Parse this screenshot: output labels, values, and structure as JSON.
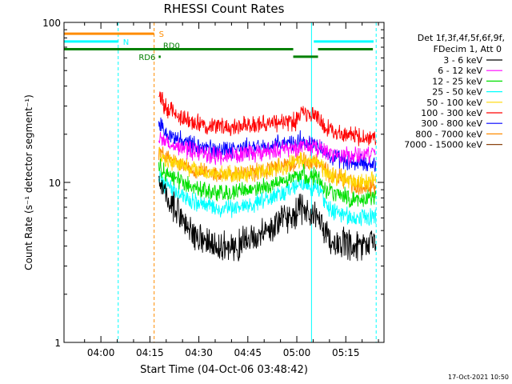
{
  "chart_data": {
    "type": "line",
    "title": "RHESSI Count Rates",
    "xlabel": "Start Time (04-Oct-06 03:48:42)",
    "ylabel": "Count Rate (s⁻¹ detector segment⁻¹)",
    "ylog": true,
    "xrange_minutes_after_start": [
      0,
      98
    ],
    "ylim": [
      1,
      100
    ],
    "x_ticks": [
      {
        "label": "04:00",
        "minute": 11.3
      },
      {
        "label": "04:15",
        "minute": 26.3
      },
      {
        "label": "04:30",
        "minute": 41.3
      },
      {
        "label": "04:45",
        "minute": 56.3
      },
      {
        "label": "05:00",
        "minute": 71.3
      },
      {
        "label": "05:15",
        "minute": 86.3
      }
    ],
    "y_ticks": [
      {
        "label": "1",
        "value": 1
      },
      {
        "label": "10",
        "value": 10
      },
      {
        "label": "100",
        "value": 100
      }
    ],
    "legend_header": [
      "Det 1f,3f,4f,5f,6f,9f,",
      "FDecim 1, Att 0"
    ],
    "series": [
      {
        "name": "3 - 6 keV",
        "color": "#000000",
        "x": [
          29.0,
          30,
          32,
          36,
          40,
          44,
          48,
          52,
          56,
          60,
          64,
          68,
          70,
          71,
          72,
          75,
          78,
          79,
          80,
          82,
          86,
          89,
          93,
          95.5
        ],
        "y": [
          9.5,
          8.6,
          7.5,
          6.0,
          4.6,
          4.1,
          3.9,
          4.0,
          4.3,
          4.6,
          5.3,
          6.0,
          6.2,
          6.3,
          6.8,
          6.5,
          6.1,
          5.5,
          4.8,
          4.3,
          4.1,
          3.8,
          4.1,
          4.4
        ]
      },
      {
        "name": "6 - 12 keV",
        "color": "#ff00ff",
        "x": [
          29.0,
          30,
          32,
          36,
          40,
          44,
          48,
          52,
          56,
          60,
          64,
          68,
          70,
          71,
          72,
          75,
          78,
          79,
          80,
          82,
          86,
          89,
          93,
          95.5
        ],
        "y": [
          19.5,
          18.5,
          17.5,
          16.3,
          15.6,
          15.1,
          14.6,
          14.8,
          15.0,
          15.2,
          15.6,
          16.2,
          16.4,
          16.5,
          17.0,
          16.8,
          16.6,
          16.0,
          15.4,
          15.1,
          14.9,
          14.6,
          14.8,
          15.0
        ]
      },
      {
        "name": "12 - 25 keV",
        "color": "#00e000",
        "x": [
          29.0,
          30,
          32,
          36,
          40,
          44,
          48,
          52,
          56,
          60,
          64,
          68,
          70,
          71,
          72,
          75,
          78,
          79,
          80,
          82,
          86,
          89,
          93,
          95.5
        ],
        "y": [
          12.8,
          12.0,
          11.2,
          10.1,
          9.3,
          8.8,
          8.5,
          8.6,
          8.9,
          9.2,
          9.7,
          10.4,
          10.7,
          10.8,
          11.3,
          11.0,
          10.7,
          10.0,
          9.3,
          8.7,
          8.2,
          7.8,
          7.9,
          8.1
        ]
      },
      {
        "name": "25 - 50 keV",
        "color": "#00ffff",
        "x": [
          29.0,
          30,
          32,
          36,
          40,
          44,
          48,
          52,
          56,
          60,
          64,
          68,
          70,
          71,
          72,
          75,
          78,
          79,
          80,
          82,
          86,
          89,
          93,
          95.5
        ],
        "y": [
          11.0,
          10.2,
          9.3,
          8.3,
          7.6,
          7.1,
          6.8,
          6.9,
          7.2,
          7.6,
          8.1,
          8.9,
          9.2,
          9.3,
          9.8,
          9.5,
          9.2,
          8.3,
          7.4,
          6.7,
          6.2,
          5.9,
          6.0,
          6.3
        ]
      },
      {
        "name": "50 - 100 keV",
        "color": "#ffd700",
        "x": [
          29.0,
          30,
          32,
          36,
          40,
          44,
          48,
          52,
          56,
          60,
          64,
          68,
          70,
          71,
          72,
          75,
          78,
          79,
          80,
          82,
          86,
          89,
          93,
          95.5
        ],
        "y": [
          15.0,
          14.4,
          13.7,
          12.8,
          12.0,
          11.5,
          11.1,
          11.2,
          11.4,
          11.7,
          12.1,
          12.8,
          13.1,
          13.2,
          13.8,
          13.5,
          13.2,
          12.5,
          11.6,
          11.0,
          10.5,
          10.1,
          10.2,
          10.4
        ]
      },
      {
        "name": "100 - 300 keV",
        "color": "#ff0000",
        "x": [
          29.0,
          30,
          32,
          36,
          40,
          44,
          48,
          52,
          56,
          60,
          64,
          68,
          70,
          71,
          72,
          75,
          78,
          79,
          80,
          82,
          86,
          89,
          93,
          95.5
        ],
        "y": [
          37.0,
          32.0,
          28.5,
          25.5,
          23.5,
          22.6,
          22.3,
          22.6,
          23.0,
          23.3,
          23.6,
          23.9,
          24.0,
          24.1,
          27.5,
          26.5,
          25.3,
          24.3,
          22.0,
          21.0,
          20.2,
          19.4,
          19.1,
          18.8
        ]
      },
      {
        "name": "300 - 800 keV",
        "color": "#0000ff",
        "x": [
          29.0,
          30,
          32,
          36,
          40,
          44,
          48,
          52,
          56,
          60,
          64,
          68,
          70,
          71,
          72,
          75,
          78,
          79,
          80,
          82,
          86,
          89,
          93,
          95.5
        ],
        "y": [
          24.0,
          22.0,
          20.0,
          18.0,
          17.0,
          16.4,
          16.1,
          16.2,
          16.4,
          16.6,
          16.9,
          17.5,
          17.7,
          17.8,
          18.3,
          17.9,
          17.5,
          16.6,
          15.2,
          14.2,
          13.6,
          13.2,
          13.0,
          13.2
        ]
      },
      {
        "name": "800 - 7000 keV",
        "color": "#ff8c00",
        "x": [
          29.0,
          30,
          32,
          36,
          40,
          44,
          48,
          52,
          56,
          60,
          64,
          68,
          70,
          71,
          72,
          75,
          78,
          79,
          80,
          82,
          86,
          89,
          93,
          95.5
        ],
        "y": [
          16.0,
          15.0,
          14.0,
          12.8,
          12.0,
          11.5,
          11.1,
          11.2,
          11.4,
          11.7,
          12.1,
          12.8,
          13.1,
          13.2,
          13.8,
          13.5,
          13.2,
          12.5,
          11.6,
          11.0,
          10.5,
          9.6,
          9.4,
          9.5
        ]
      },
      {
        "name": "7000 - 15000 keV",
        "color": "#8b4513",
        "x": [],
        "y": []
      }
    ],
    "time_markers": [
      {
        "minute": 0.0,
        "color": "#00ffff",
        "style": "solid"
      },
      {
        "minute": 16.6,
        "color": "#00ffff",
        "style": "dashed"
      },
      {
        "minute": 27.6,
        "color": "#ff8c00",
        "style": "dashed"
      },
      {
        "minute": 75.8,
        "color": "#00ffff",
        "style": "solid"
      },
      {
        "minute": 95.6,
        "color": "#00ffff",
        "style": "dashed"
      }
    ],
    "flag_bars": [
      {
        "label": "S",
        "color": "#ff8c00",
        "value": 85,
        "segments": [
          [
            0.0,
            27.6
          ]
        ]
      },
      {
        "label": "N",
        "color": "#00ffff",
        "value": 76,
        "segments": [
          [
            0.0,
            16.6
          ],
          [
            76.5,
            94.8
          ]
        ]
      },
      {
        "label": "",
        "color": "#008000",
        "value": 68,
        "segments": [
          [
            0.0,
            70.2
          ],
          [
            77.8,
            94.6
          ]
        ]
      },
      {
        "label": "",
        "color": "#008000",
        "value": 61,
        "segments": [
          [
            70.2,
            77.8
          ]
        ]
      },
      {
        "label": "RD6",
        "color": "#008000",
        "value": 61,
        "segments": [
          [
            29.0,
            29.6
          ]
        ]
      },
      {
        "label": "RD0",
        "color": "#008000",
        "value": 68,
        "segments": []
      }
    ]
  },
  "footer": {
    "timestamp": "17-Oct-2021 10:50"
  }
}
